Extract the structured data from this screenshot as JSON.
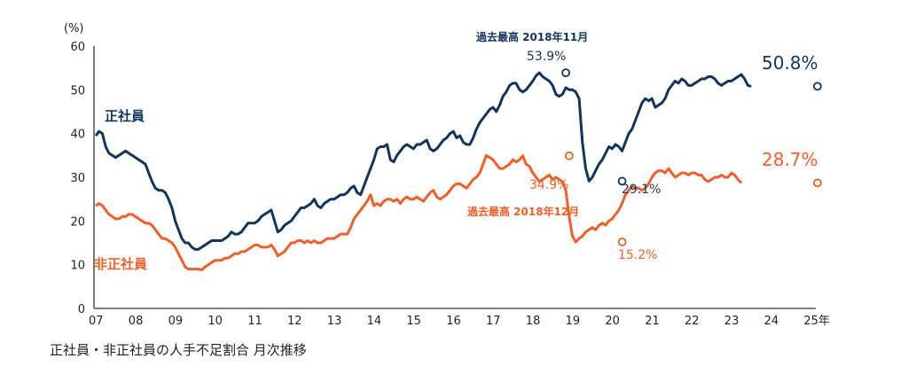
{
  "chart_data": {
    "type": "line",
    "title": "正社員・非正社員の人手不足割合 月次推移",
    "ylabel": "(%)",
    "xlabel": "",
    "ylim": [
      0,
      60
    ],
    "yticks": [
      "0",
      "10",
      "20",
      "30",
      "40",
      "50",
      "60"
    ],
    "xticks": [
      "07",
      "08",
      "09",
      "10",
      "11",
      "12",
      "13",
      "14",
      "15",
      "16",
      "17",
      "18",
      "19",
      "20",
      "21",
      "22",
      "23",
      "24",
      "25年"
    ],
    "x_start": 2007.0,
    "x_step_months": 1,
    "colors": {
      "regular": "#12355f",
      "nonregular": "#ee5f2a",
      "regular_marker_fill": "#c7d8ef",
      "nonregular_marker_fill": "#f8d7c8"
    },
    "series": [
      {
        "name": "正社員",
        "values": [
          39.5,
          40.5,
          40,
          37,
          35.5,
          35,
          34.5,
          35,
          35.5,
          36,
          35.5,
          35,
          34.5,
          34,
          33.5,
          33,
          31,
          29,
          27.5,
          27,
          27,
          26.5,
          25,
          23,
          20,
          18,
          16,
          15,
          15,
          14,
          13.5,
          13.5,
          14,
          14.5,
          15,
          15.5,
          15.5,
          15.5,
          15.5,
          16,
          16.5,
          17.5,
          17,
          17,
          17.5,
          18.5,
          19.5,
          19.5,
          19.5,
          20,
          21,
          21.5,
          22,
          22.5,
          20,
          17.5,
          18,
          19,
          19.5,
          20,
          21,
          22,
          23,
          23,
          23.5,
          24,
          25,
          23.5,
          23,
          24,
          24.5,
          25,
          25,
          25.5,
          26,
          26,
          26.5,
          27.5,
          28,
          26.5,
          26,
          28,
          30,
          32,
          34,
          36.5,
          37,
          37,
          37.5,
          34,
          33.5,
          35,
          36,
          37,
          37.5,
          37,
          36.5,
          37.5,
          37.5,
          38,
          38.5,
          36.5,
          36,
          36.5,
          37.5,
          38.5,
          39,
          40,
          40.5,
          39,
          39.5,
          38,
          37.5,
          37.5,
          39,
          41,
          42.5,
          43.5,
          44.5,
          45.5,
          46,
          45,
          46.5,
          48.5,
          49.5,
          51,
          51.5,
          51.5,
          50,
          49.5,
          50,
          51,
          52,
          53.2,
          53.9,
          53,
          52.5,
          52,
          51,
          49,
          48.5,
          49,
          50.5,
          50,
          50,
          49.5,
          48,
          38,
          32,
          29.1,
          30,
          31.5,
          33,
          34,
          35.5,
          37,
          36.5,
          37.5,
          37,
          36,
          38,
          40,
          41,
          43,
          45,
          47,
          48,
          47.5,
          48,
          46,
          46.5,
          47,
          48,
          50,
          51,
          52,
          51.5,
          52.5,
          52,
          51,
          51,
          51.5,
          52,
          52.5,
          52.5,
          53,
          53,
          52.5,
          51.5,
          51,
          51.5,
          52,
          52,
          52.5,
          53,
          53.5,
          52.5,
          51,
          50.8
        ],
        "annotations": [
          {
            "label_top": "過去最高 2018年11月",
            "label": "53.9%",
            "x_index": 142,
            "value": 53.9
          },
          {
            "label": "29.1%",
            "x_index": 159,
            "value": 29.1
          },
          {
            "label": "50.8%",
            "x_index": 218,
            "value": 50.8
          }
        ],
        "series_label": "正社員"
      },
      {
        "name": "非正社員",
        "values": [
          23.5,
          24,
          23.5,
          22.5,
          21.5,
          21,
          20.5,
          20.5,
          21,
          21,
          21.5,
          21.5,
          21,
          20.5,
          20,
          19.5,
          19.5,
          19,
          18,
          17,
          16,
          16,
          15.5,
          15,
          14,
          12.5,
          11,
          9.5,
          9,
          9,
          9,
          9,
          8.8,
          9.5,
          10,
          10.5,
          11,
          11,
          11,
          11.5,
          11.5,
          12,
          12.5,
          12.5,
          13,
          13,
          13.5,
          14,
          14.5,
          14.5,
          14,
          14,
          14,
          14.5,
          13.5,
          12,
          12.5,
          13,
          14,
          15,
          15,
          15.5,
          15.5,
          15,
          15.5,
          15,
          15.5,
          15,
          15,
          15.5,
          16,
          16,
          16,
          16.5,
          17,
          17,
          17,
          18.5,
          20.5,
          21.5,
          22.5,
          23.5,
          24.5,
          26,
          23.5,
          24,
          23.5,
          24.5,
          25,
          25,
          24.5,
          25,
          24,
          25,
          25.5,
          25,
          25,
          25.5,
          25,
          24.5,
          25.5,
          26.5,
          27,
          25.5,
          25,
          25.5,
          26,
          27,
          28,
          28.5,
          28.5,
          28,
          27.5,
          28.5,
          29.5,
          30,
          31,
          33,
          35,
          34.5,
          34,
          33,
          32,
          32,
          32.5,
          33,
          34,
          33.5,
          34,
          34.9,
          33,
          32.5,
          31,
          30,
          29,
          29.5,
          30,
          30.5,
          29.5,
          30,
          29.5,
          29,
          27,
          21,
          16.5,
          15.2,
          16,
          16.5,
          17.5,
          18,
          18.5,
          18,
          19,
          19.5,
          19,
          20,
          20.5,
          21.5,
          22.5,
          24,
          26,
          27,
          28,
          27.5,
          27.5,
          27,
          27.5,
          28.5,
          30,
          31,
          31.5,
          31.5,
          31,
          32,
          31,
          30,
          30.5,
          31,
          31,
          30.5,
          31,
          31,
          30.5,
          30.5,
          29.5,
          29,
          29.5,
          30,
          30,
          30.5,
          30,
          30,
          31,
          30.5,
          29.5,
          28.7
        ],
        "annotations": [
          {
            "label": "34.9%",
            "x_index": 143,
            "value": 34.9
          },
          {
            "label_bottom": "過去最高 2018年12月"
          },
          {
            "label": "15.2%",
            "x_index": 159,
            "value": 15.2
          },
          {
            "label": "28.7%",
            "x_index": 218,
            "value": 28.7
          }
        ],
        "series_label": "非正社員"
      }
    ]
  }
}
